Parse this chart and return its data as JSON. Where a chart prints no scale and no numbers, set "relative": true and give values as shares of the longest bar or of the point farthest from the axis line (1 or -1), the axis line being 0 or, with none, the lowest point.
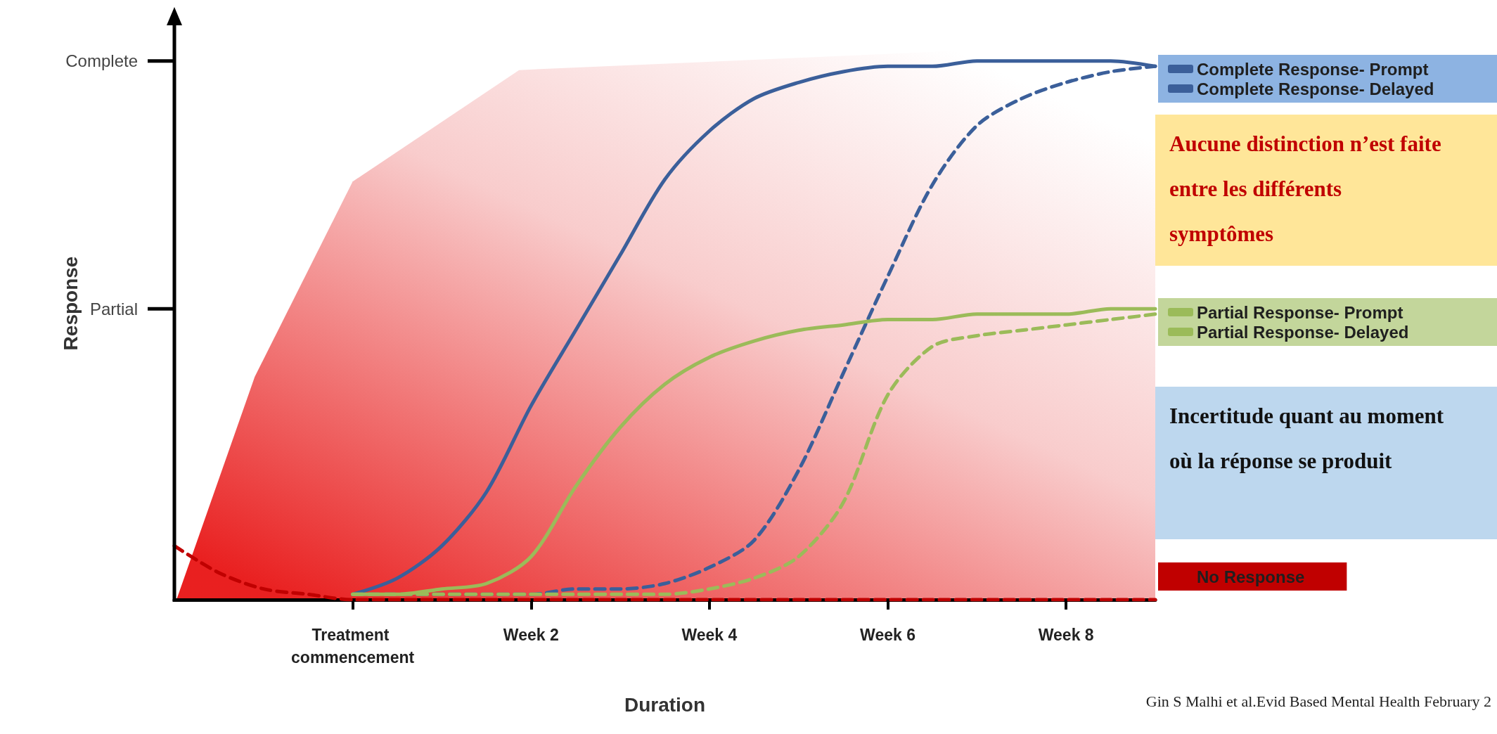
{
  "chart_data": {
    "type": "line",
    "xlabel": "Duration",
    "ylabel": "Response",
    "categories": [
      null,
      null,
      null,
      null,
      "Treatment commencement",
      null,
      null,
      null,
      "Week 2",
      null,
      null,
      null,
      "Week 4",
      null,
      null,
      null,
      "Week 6",
      null,
      null,
      null,
      "Week 8",
      null,
      null
    ],
    "relative": true,
    "marker": "none",
    "legend": "right",
    "series": [
      {
        "name": "Complete Response- Prompt",
        "color": "#3b5f9a",
        "line_style": "solid",
        "values": [
          null,
          null,
          null,
          null,
          0.01,
          0.04,
          0.1,
          0.2,
          0.36,
          0.5,
          0.64,
          0.78,
          0.87,
          0.93,
          0.96,
          0.98,
          0.99,
          0.99,
          1.0,
          1.0,
          1.0,
          1.0,
          0.99
        ]
      },
      {
        "name": "Complete Response- Delayed",
        "color": "#3b5f9a",
        "line_style": "dashed",
        "values": [
          null,
          null,
          null,
          null,
          0.01,
          0.01,
          0.01,
          0.01,
          0.01,
          0.02,
          0.02,
          0.03,
          0.06,
          0.11,
          0.24,
          0.42,
          0.6,
          0.77,
          0.88,
          0.93,
          0.96,
          0.98,
          0.99
        ]
      },
      {
        "name": "Partial Response- Prompt",
        "color": "#9bbb59",
        "line_style": "solid",
        "values": [
          null,
          null,
          null,
          null,
          0.01,
          0.01,
          0.02,
          0.03,
          0.08,
          0.21,
          0.32,
          0.4,
          0.45,
          0.48,
          0.5,
          0.51,
          0.52,
          0.52,
          0.53,
          0.53,
          0.53,
          0.54,
          0.54
        ]
      },
      {
        "name": "Partial Response- Delayed",
        "color": "#9bbb59",
        "line_style": "dashed",
        "values": [
          null,
          null,
          null,
          null,
          0.01,
          0.01,
          0.01,
          0.01,
          0.01,
          0.01,
          0.01,
          0.01,
          0.02,
          0.04,
          0.08,
          0.18,
          0.38,
          0.47,
          0.49,
          0.5,
          0.51,
          0.52,
          0.53
        ]
      },
      {
        "name": "No Response",
        "color": "#c00000",
        "line_style": "dashed",
        "values": [
          0.1,
          0.05,
          0.02,
          0.01,
          0,
          0,
          0,
          0,
          0,
          0,
          0,
          0,
          0,
          0,
          0,
          0,
          0,
          0,
          0,
          0,
          0,
          0,
          0
        ]
      }
    ],
    "annotations": [
      "Complete",
      "Partial",
      "Aucune distinction n’est faite entre les différents symptômes",
      "Incertitude quant au moment où la réponse se produit",
      "Gin S Malhi et al.Evid Based Mental Health February 2"
    ]
  }
}
